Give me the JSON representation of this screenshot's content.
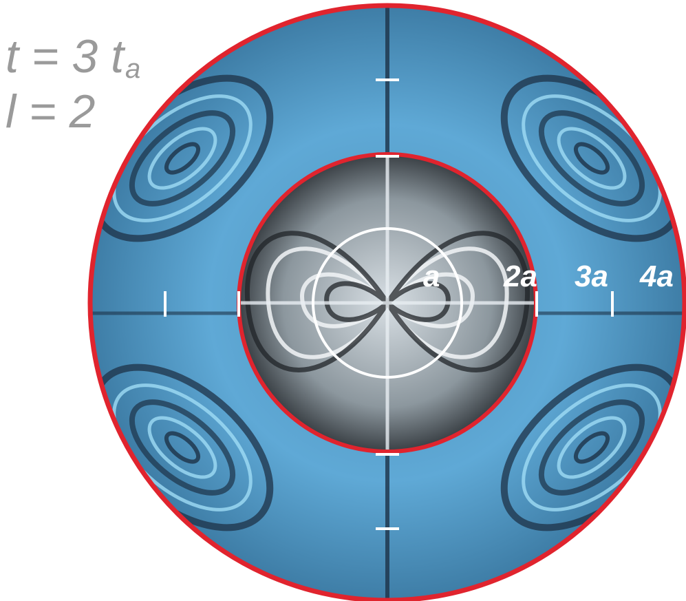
{
  "annotation": {
    "time_prefix": "t = 3 t",
    "time_subscript": "a",
    "mode_label": "l = 2"
  },
  "radius_labels": [
    "a",
    "2a",
    "3a",
    "4a"
  ],
  "colors": {
    "outer_shell": "#5fa9d6",
    "outer_shell_dark": "#1d3247",
    "inner_core": "#b9c3c9",
    "inner_core_dark": "#202428",
    "boundary": "#e0242e",
    "marker": "#ffffff",
    "annotation_text": "#9a9a9a"
  }
}
